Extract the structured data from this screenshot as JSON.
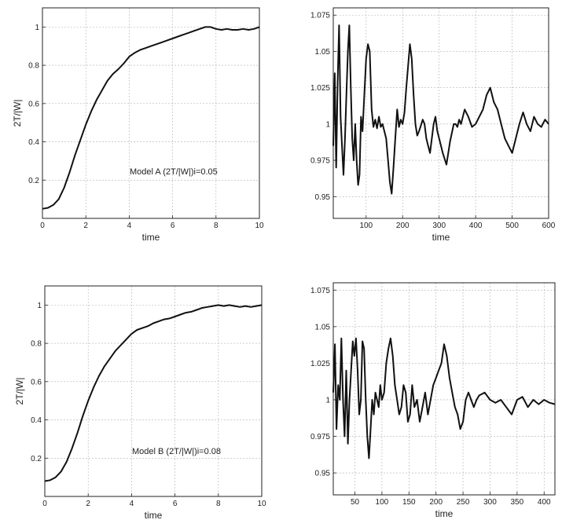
{
  "chart_data": [
    {
      "id": "a-left",
      "type": "line",
      "xlabel": "time",
      "ylabel": "2T/|W|",
      "annotation": "Model A (2T/|W|)i=0.05",
      "xlim": [
        0,
        10
      ],
      "ylim": [
        0,
        1.1
      ],
      "xticks": [
        0,
        2,
        4,
        6,
        8,
        10
      ],
      "yticks": [
        0.2,
        0.4,
        0.6,
        0.8,
        1
      ],
      "grid": true,
      "series": [
        {
          "x": [
            0,
            0.25,
            0.5,
            0.75,
            1,
            1.25,
            1.5,
            1.75,
            2,
            2.25,
            2.5,
            2.75,
            3,
            3.25,
            3.5,
            3.75,
            4,
            4.25,
            4.5,
            4.75,
            5,
            5.25,
            5.5,
            5.75,
            6,
            6.25,
            6.5,
            6.75,
            7,
            7.25,
            7.5,
            7.75,
            8,
            8.25,
            8.5,
            8.75,
            9,
            9.25,
            9.5,
            9.75,
            10
          ],
          "y": [
            0.05,
            0.055,
            0.07,
            0.1,
            0.16,
            0.24,
            0.33,
            0.41,
            0.49,
            0.56,
            0.62,
            0.67,
            0.72,
            0.755,
            0.78,
            0.81,
            0.845,
            0.865,
            0.88,
            0.89,
            0.9,
            0.91,
            0.92,
            0.93,
            0.94,
            0.95,
            0.96,
            0.97,
            0.98,
            0.99,
            1,
            1.0,
            0.99,
            0.985,
            0.99,
            0.985,
            0.985,
            0.99,
            0.985,
            0.99,
            1.0
          ]
        }
      ]
    },
    {
      "id": "a-right",
      "type": "line",
      "xlabel": "time",
      "ylabel": "",
      "xlim": [
        10,
        600
      ],
      "ylim": [
        0.935,
        1.08
      ],
      "xticks": [
        100,
        200,
        300,
        400,
        500,
        600
      ],
      "yticks": [
        0.95,
        0.975,
        1,
        1.025,
        1.05,
        1.075
      ],
      "grid": true,
      "series": [
        {
          "x": [
            10,
            14,
            18,
            22,
            26,
            30,
            34,
            38,
            42,
            46,
            50,
            54,
            58,
            62,
            66,
            70,
            74,
            78,
            82,
            86,
            90,
            95,
            100,
            105,
            110,
            115,
            120,
            125,
            130,
            135,
            140,
            145,
            150,
            155,
            160,
            165,
            170,
            175,
            180,
            185,
            190,
            195,
            200,
            205,
            210,
            215,
            220,
            225,
            230,
            235,
            240,
            245,
            250,
            255,
            260,
            265,
            270,
            275,
            280,
            285,
            290,
            295,
            300,
            310,
            320,
            330,
            340,
            345,
            350,
            355,
            360,
            370,
            380,
            390,
            400,
            410,
            420,
            430,
            440,
            450,
            460,
            470,
            480,
            490,
            500,
            510,
            520,
            530,
            540,
            550,
            560,
            570,
            580,
            590,
            600
          ],
          "y": [
            0.985,
            1.035,
            0.97,
            1.03,
            1.068,
            1.005,
            0.985,
            0.965,
            0.99,
            1.02,
            1.05,
            1.068,
            1.025,
            0.99,
            0.975,
            1.0,
            0.975,
            0.958,
            0.965,
            1.005,
            0.995,
            1.02,
            1.045,
            1.055,
            1.05,
            1.01,
            0.998,
            1.003,
            0.997,
            1.005,
            0.998,
            1.0,
            0.995,
            0.99,
            0.975,
            0.96,
            0.952,
            0.97,
            0.99,
            1.01,
            0.998,
            1.003,
            1.0,
            1.008,
            1.025,
            1.04,
            1.055,
            1.045,
            1.02,
            1.0,
            0.992,
            0.995,
            0.999,
            1.003,
            1.0,
            0.99,
            0.985,
            0.98,
            0.99,
            1.0,
            1.005,
            0.995,
            0.99,
            0.98,
            0.972,
            0.988,
            1.0,
            1.0,
            0.998,
            1.003,
            1.0,
            1.01,
            1.005,
            0.998,
            1.0,
            1.005,
            1.01,
            1.02,
            1.025,
            1.015,
            1.01,
            1.0,
            0.99,
            0.985,
            0.98,
            0.99,
            1.0,
            1.008,
            1.0,
            0.995,
            1.005,
            1.0,
            0.998,
            1.003,
            1.0
          ]
        }
      ]
    },
    {
      "id": "b-left",
      "type": "line",
      "xlabel": "time",
      "ylabel": "2T/|W|",
      "annotation": "Model B (2T/|W|)i=0.08",
      "xlim": [
        0,
        10
      ],
      "ylim": [
        0,
        1.1
      ],
      "xticks": [
        0,
        2,
        4,
        6,
        8,
        10
      ],
      "yticks": [
        0.2,
        0.4,
        0.6,
        0.8,
        1
      ],
      "grid": true,
      "series": [
        {
          "x": [
            0,
            0.25,
            0.5,
            0.75,
            1,
            1.25,
            1.5,
            1.75,
            2,
            2.25,
            2.5,
            2.75,
            3,
            3.25,
            3.5,
            3.75,
            4,
            4.25,
            4.5,
            4.75,
            5,
            5.25,
            5.5,
            5.75,
            6,
            6.25,
            6.5,
            6.75,
            7,
            7.25,
            7.5,
            7.75,
            8,
            8.25,
            8.5,
            8.75,
            9,
            9.25,
            9.5,
            9.75,
            10
          ],
          "y": [
            0.08,
            0.085,
            0.1,
            0.13,
            0.18,
            0.25,
            0.33,
            0.42,
            0.5,
            0.57,
            0.63,
            0.68,
            0.72,
            0.76,
            0.79,
            0.82,
            0.85,
            0.87,
            0.88,
            0.89,
            0.905,
            0.915,
            0.925,
            0.93,
            0.94,
            0.95,
            0.96,
            0.965,
            0.975,
            0.985,
            0.99,
            0.995,
            1.0,
            0.995,
            1.0,
            0.995,
            0.99,
            0.995,
            0.99,
            0.995,
            1.0
          ]
        }
      ]
    },
    {
      "id": "b-right",
      "type": "line",
      "xlabel": "time",
      "ylabel": "",
      "xlim": [
        10,
        420
      ],
      "ylim": [
        0.935,
        1.08
      ],
      "xticks": [
        50,
        100,
        150,
        200,
        250,
        300,
        350,
        400
      ],
      "yticks": [
        0.95,
        0.975,
        1,
        1.025,
        1.05,
        1.075
      ],
      "grid": true,
      "series": [
        {
          "x": [
            10,
            13,
            16,
            19,
            22,
            25,
            28,
            31,
            34,
            37,
            40,
            43,
            46,
            49,
            52,
            55,
            58,
            61,
            64,
            67,
            70,
            73,
            76,
            79,
            82,
            85,
            88,
            91,
            94,
            97,
            100,
            104,
            108,
            112,
            116,
            120,
            124,
            128,
            132,
            136,
            140,
            144,
            148,
            152,
            156,
            160,
            165,
            170,
            175,
            180,
            185,
            190,
            195,
            200,
            205,
            210,
            215,
            220,
            225,
            230,
            235,
            240,
            245,
            250,
            255,
            260,
            265,
            270,
            275,
            280,
            290,
            300,
            310,
            320,
            330,
            340,
            350,
            360,
            370,
            380,
            390,
            400,
            410,
            420
          ],
          "y": [
            1.005,
            1.038,
            0.98,
            1.01,
            1.0,
            1.042,
            1.0,
            0.975,
            1.02,
            0.97,
            1.0,
            1.02,
            1.04,
            1.03,
            1.042,
            1.02,
            0.99,
            1.0,
            1.04,
            1.035,
            1.0,
            0.975,
            0.96,
            0.98,
            1.0,
            0.99,
            1.005,
            1.0,
            0.995,
            1.01,
            1.0,
            1.005,
            1.025,
            1.035,
            1.042,
            1.03,
            1.01,
            1.0,
            0.99,
            0.995,
            1.01,
            1.005,
            0.985,
            0.99,
            1.01,
            0.995,
            1.0,
            0.985,
            0.995,
            1.005,
            0.99,
            1.0,
            1.01,
            1.015,
            1.02,
            1.025,
            1.038,
            1.03,
            1.015,
            1.005,
            0.995,
            0.99,
            0.98,
            0.985,
            1.0,
            1.005,
            1.0,
            0.995,
            1.0,
            1.003,
            1.005,
            1.0,
            0.998,
            1.0,
            0.995,
            0.99,
            1.0,
            1.002,
            0.995,
            1.0,
            0.997,
            1.0,
            0.998,
            0.997
          ]
        }
      ]
    }
  ]
}
